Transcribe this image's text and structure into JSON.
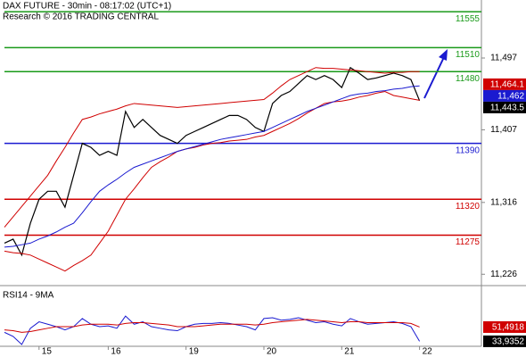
{
  "chart_data": [
    {
      "type": "line",
      "title": "DAX FUTURE - 30min - 08:17:02 (UTC+1)",
      "subtitle": "Research © 2016 TRADING CENTRAL",
      "categories": [
        null,
        null,
        null,
        null,
        "15",
        null,
        null,
        null,
        null,
        null,
        null,
        null,
        "16",
        null,
        null,
        null,
        null,
        null,
        null,
        null,
        null,
        "19",
        null,
        null,
        null,
        null,
        null,
        null,
        null,
        null,
        "20",
        null,
        null,
        null,
        null,
        null,
        null,
        null,
        null,
        "21",
        null,
        null,
        null,
        null,
        null,
        null,
        null,
        null,
        "22"
      ],
      "ylim": [
        11214,
        11569.7
      ],
      "yticks": [
        {
          "value": 11226,
          "label": "11,226"
        },
        {
          "value": 11316,
          "label": "11,316"
        },
        {
          "value": 11407,
          "label": "11,407"
        },
        {
          "value": 11497,
          "label": "11,497"
        }
      ],
      "series": [
        {
          "color": "#000000",
          "values": [
            11265,
            11270,
            11250,
            11290,
            11320,
            11330,
            11330,
            11310,
            11350,
            11390,
            11385,
            11375,
            11380,
            11375,
            11430,
            11410,
            11420,
            11410,
            11400,
            11395,
            11390,
            11400,
            11405,
            11410,
            11415,
            11420,
            11425,
            11425,
            11420,
            11410,
            11405,
            11440,
            11450,
            11455,
            11465,
            11475,
            11470,
            11475,
            11470,
            11460,
            11485,
            11478,
            11470,
            11472,
            11475,
            11478,
            11475,
            11470,
            11443.5
          ]
        },
        {
          "color": "#d00000",
          "values": [
            11285,
            11298,
            11311,
            11324,
            11337,
            11350,
            11368,
            11385,
            11403,
            11420,
            11423,
            11427,
            11430,
            11433,
            11437,
            11440,
            11439,
            11438,
            11437,
            11436,
            11435,
            11436,
            11437,
            11438,
            11439,
            11440,
            11441,
            11442,
            11443,
            11444,
            11445,
            11453,
            11462,
            11470,
            11475,
            11480,
            11485,
            11484,
            11484,
            11483,
            11482,
            11481,
            11480,
            11479,
            11478,
            11479,
            11479,
            11480,
            11480
          ]
        },
        {
          "color": "#d00000",
          "values": [
            11255,
            11253,
            11252,
            11250,
            11245,
            11240,
            11235,
            11230,
            11237,
            11243,
            11250,
            11265,
            11280,
            11300,
            11320,
            11333,
            11347,
            11360,
            11367,
            11373,
            11380,
            11383,
            11385,
            11388,
            11390,
            11391,
            11393,
            11394,
            11395,
            11398,
            11400,
            11405,
            11410,
            11415,
            11421,
            11428,
            11434,
            11440,
            11442,
            11443,
            11445,
            11448,
            11450,
            11453,
            11455,
            11450,
            11448,
            11446,
            11444
          ]
        },
        {
          "color": "#1a1ad0",
          "values": [
            11260,
            11261,
            11263,
            11265,
            11270,
            11274,
            11279,
            11285,
            11290,
            11303,
            11317,
            11330,
            11338,
            11345,
            11353,
            11360,
            11364,
            11368,
            11372,
            11376,
            11380,
            11383,
            11386,
            11389,
            11392,
            11395,
            11397,
            11399,
            11401,
            11403,
            11405,
            11410,
            11415,
            11420,
            11425,
            11430,
            11434,
            11438,
            11442,
            11446,
            11450,
            11452,
            11453,
            11455,
            11456,
            11458,
            11459,
            11461,
            11462
          ]
        }
      ],
      "levels": [
        {
          "value": 11555,
          "color": "#1a9a1a"
        },
        {
          "value": 11510,
          "color": "#1a9a1a"
        },
        {
          "value": 11480,
          "color": "#1a9a1a"
        },
        {
          "value": 11390,
          "color": "#1a1ad0"
        },
        {
          "value": 11320,
          "color": "#d00000"
        },
        {
          "value": 11275,
          "color": "#d00000"
        }
      ],
      "tags": [
        {
          "value": 11464.1,
          "label": "11,464.1",
          "color": "#d00000"
        },
        {
          "value": 11462,
          "label": "11,462",
          "color": "#1a1ad0"
        },
        {
          "value": 11443.5,
          "label": "11,443.5",
          "color": "#000000"
        }
      ]
    },
    {
      "type": "line",
      "title": "RSI14 - 9MA",
      "ylim": [
        30,
        85
      ],
      "series": [
        {
          "color": "#1a1ad0",
          "values": [
            45,
            40,
            30,
            50,
            58,
            55,
            52,
            48,
            52,
            62,
            55,
            52,
            53,
            50,
            65,
            55,
            58,
            52,
            50,
            48,
            47,
            52,
            55,
            56,
            56,
            57,
            56,
            54,
            52,
            48,
            62,
            63,
            60,
            61,
            63,
            60,
            57,
            58,
            55,
            53,
            62,
            58,
            55,
            56,
            57,
            58,
            56,
            52,
            33.9352
          ]
        },
        {
          "color": "#d00000",
          "values": [
            48,
            47,
            45,
            46,
            48,
            50,
            52,
            52,
            52,
            54,
            55,
            55,
            55,
            54,
            56,
            57,
            57,
            56,
            55,
            54,
            52,
            52,
            52,
            53,
            54,
            55,
            55,
            55,
            55,
            54,
            55,
            57,
            58,
            59,
            60,
            61,
            60,
            59,
            58,
            57,
            58,
            58,
            57,
            57,
            57,
            57,
            57,
            56,
            51.4918
          ]
        }
      ],
      "tags": [
        {
          "value": 51.4918,
          "label": "51,4918",
          "color": "#d00000"
        },
        {
          "value": 33.9352,
          "label": "33,9352",
          "color": "#000000"
        }
      ]
    }
  ]
}
